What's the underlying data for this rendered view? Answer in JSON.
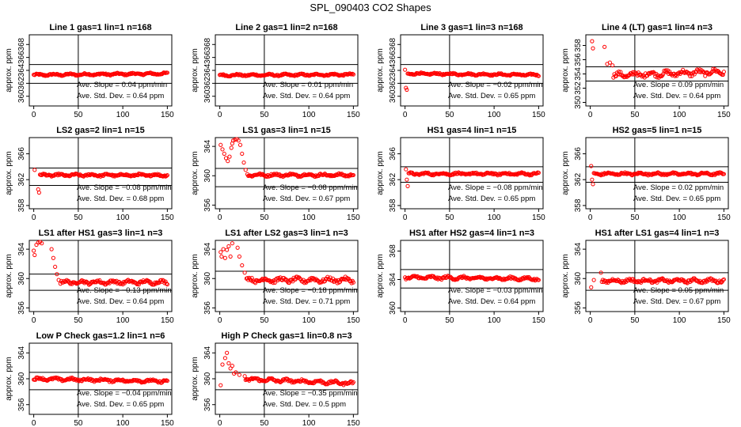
{
  "title": "SPL_090403  CO2 Shapes",
  "colors": {
    "points": "#ff0000",
    "axes": "#000000"
  },
  "chart_data": [
    {
      "type": "scatter",
      "title": "Line 1 gas=1 lin=1 n=168",
      "ylabel": "approx. ppm",
      "ylim": [
        358.5,
        369.5
      ],
      "yticks": [
        360,
        362,
        364,
        366,
        368
      ],
      "xlim": [
        -5,
        155
      ],
      "xticks": [
        0,
        50,
        100,
        150
      ],
      "vline": 50,
      "hlines": [
        364.9,
        362.0
      ],
      "slope_label": "Ave. Slope =  0.04  ppm/min",
      "sd_label": "Ave. Std. Dev. =  0.64  ppm",
      "profile": {
        "n": 168,
        "base": 363.4,
        "noise": 0.2,
        "trend": 0.1
      }
    },
    {
      "type": "scatter",
      "title": "Line 2 gas=1 lin=2 n=168",
      "ylabel": "approx. ppm",
      "ylim": [
        358.5,
        369.5
      ],
      "yticks": [
        360,
        362,
        364,
        366,
        368
      ],
      "xlim": [
        -5,
        155
      ],
      "xticks": [
        0,
        50,
        100,
        150
      ],
      "vline": 50,
      "hlines": [
        364.9,
        362.0
      ],
      "slope_label": "Ave. Slope =  0.01  ppm/min",
      "sd_label": "Ave. Std. Dev. =  0.64  ppm",
      "profile": {
        "n": 168,
        "base": 363.3,
        "noise": 0.2,
        "trend": 0.05
      }
    },
    {
      "type": "scatter",
      "title": "Line 3 gas=1 lin=3 n=168",
      "ylabel": "approx. ppm",
      "ylim": [
        358.5,
        369.5
      ],
      "yticks": [
        360,
        362,
        364,
        366,
        368
      ],
      "xlim": [
        -5,
        155
      ],
      "xticks": [
        0,
        50,
        100,
        150
      ],
      "vline": 50,
      "hlines": [
        364.9,
        362.0
      ],
      "slope_label": "Ave. Slope = −0.02  ppm/min",
      "sd_label": "Ave. Std. Dev. =  0.65  ppm",
      "profile": {
        "n": 168,
        "base": 363.4,
        "noise": 0.2,
        "trend": -0.1,
        "start": [
          [
            0,
            364.1
          ],
          [
            1,
            361.3
          ],
          [
            2,
            361.0
          ]
        ]
      }
    },
    {
      "type": "scatter",
      "title": "Line 4 (LT) gas=1 lin=4 n=3",
      "ylabel": "approx. ppm",
      "ylim": [
        349.5,
        359.5
      ],
      "yticks": [
        350,
        352,
        354,
        356,
        358
      ],
      "xlim": [
        -5,
        155
      ],
      "xticks": [
        0,
        50,
        100,
        150
      ],
      "vline": 50,
      "hlines": [
        355.0,
        353.0
      ],
      "slope_label": "Ave. Slope =  0.09  ppm/min",
      "sd_label": "Ave. Std. Dev. =  0.64  ppm",
      "profile": {
        "n": 150,
        "base": 354.0,
        "noise": 0.55,
        "trend": 0.3,
        "start": [
          [
            2,
            358.6
          ],
          [
            3,
            357.6
          ],
          [
            16,
            357.8
          ],
          [
            19,
            355.4
          ],
          [
            22,
            355.6
          ],
          [
            25,
            355.2
          ]
        ]
      }
    },
    {
      "type": "scatter",
      "title": "LS2 gas=2 lin=1 n=15",
      "ylabel": "approx. ppm",
      "ylim": [
        357.5,
        368.5
      ],
      "yticks": [
        358,
        362,
        366
      ],
      "xlim": [
        -5,
        155
      ],
      "xticks": [
        0,
        50,
        100,
        150
      ],
      "vline": 50,
      "hlines": [
        363.8,
        361.1
      ],
      "slope_label": "Ave. Slope = −0.08  ppm/min",
      "sd_label": "Ave. Std. Dev. =  0.68  ppm",
      "profile": {
        "n": 150,
        "base": 362.7,
        "noise": 0.25,
        "trend": 0.0,
        "start": [
          [
            1,
            363.5
          ],
          [
            5,
            360.5
          ],
          [
            6,
            360.0
          ]
        ]
      }
    },
    {
      "type": "scatter",
      "title": "LS1 gas=3 lin=1 n=15",
      "ylabel": "approx. ppm",
      "ylim": [
        355.5,
        365.2
      ],
      "yticks": [
        356,
        360,
        364
      ],
      "xlim": [
        -5,
        155
      ],
      "xticks": [
        0,
        50,
        100,
        150
      ],
      "vline": 50,
      "hlines": [
        361.0,
        358.5
      ],
      "slope_label": "Ave. Slope = −0.08  ppm/min",
      "sd_label": "Ave. Std. Dev. =  0.67  ppm",
      "profile": {
        "n": 150,
        "base": 360.1,
        "noise": 0.25,
        "trend": 0.0,
        "start": [
          [
            1,
            364.2
          ],
          [
            3,
            363.6
          ],
          [
            5,
            363.0
          ],
          [
            7,
            362.4
          ],
          [
            9,
            362.0
          ],
          [
            11,
            362.6
          ],
          [
            13,
            363.8
          ],
          [
            14,
            364.4
          ],
          [
            15,
            364.8
          ],
          [
            17,
            364.9
          ],
          [
            19,
            365.0
          ],
          [
            21,
            364.8
          ],
          [
            23,
            364.2
          ],
          [
            25,
            363.0
          ],
          [
            27,
            361.8
          ],
          [
            29,
            360.8
          ],
          [
            31,
            360.2
          ]
        ]
      }
    },
    {
      "type": "scatter",
      "title": "HS1 gas=4 lin=1 n=15",
      "ylabel": "approx. ppm",
      "ylim": [
        357.5,
        368.5
      ],
      "yticks": [
        358,
        362,
        366
      ],
      "xlim": [
        -5,
        155
      ],
      "xticks": [
        0,
        50,
        100,
        150
      ],
      "vline": 50,
      "hlines": [
        364.0,
        361.6
      ],
      "slope_label": "Ave. Slope = −0.08  ppm/min",
      "sd_label": "Ave. Std. Dev. =  0.65  ppm",
      "profile": {
        "n": 150,
        "base": 362.9,
        "noise": 0.25,
        "trend": 0.0,
        "start": [
          [
            1,
            363.6
          ],
          [
            2,
            362.0
          ],
          [
            3,
            361.0
          ]
        ]
      }
    },
    {
      "type": "scatter",
      "title": "HS2 gas=5 lin=1 n=15",
      "ylabel": "approx. ppm",
      "ylim": [
        357.5,
        368.5
      ],
      "yticks": [
        358,
        362,
        366
      ],
      "xlim": [
        -5,
        155
      ],
      "xticks": [
        0,
        50,
        100,
        150
      ],
      "vline": 50,
      "hlines": [
        364.0,
        361.6
      ],
      "slope_label": "Ave. Slope =  0.02  ppm/min",
      "sd_label": "Ave. Std. Dev. =  0.65  ppm",
      "profile": {
        "n": 150,
        "base": 362.9,
        "noise": 0.25,
        "trend": 0.0,
        "start": [
          [
            1,
            364.1
          ],
          [
            2,
            362.0
          ],
          [
            3,
            361.3
          ]
        ]
      }
    },
    {
      "type": "scatter",
      "title": "LS1 after HS1 gas=3 lin=1 n=3",
      "ylabel": "approx. ppm",
      "ylim": [
        355.5,
        365.2
      ],
      "yticks": [
        356,
        360,
        364
      ],
      "xlim": [
        -5,
        155
      ],
      "xticks": [
        0,
        50,
        100,
        150
      ],
      "vline": 50,
      "hlines": [
        360.6,
        358.4
      ],
      "slope_label": "Ave. Slope = −0.13  ppm/min",
      "sd_label": "Ave. Std. Dev. =  0.64  ppm",
      "profile": {
        "n": 150,
        "base": 359.5,
        "noise": 0.35,
        "trend": 0.0,
        "start": [
          [
            0,
            363.8
          ],
          [
            1,
            363.2
          ],
          [
            3,
            364.6
          ],
          [
            5,
            364.9
          ],
          [
            7,
            365.0
          ],
          [
            9,
            364.8
          ],
          [
            20,
            364.0
          ],
          [
            22,
            362.8
          ],
          [
            24,
            361.6
          ],
          [
            26,
            360.6
          ],
          [
            28,
            359.8
          ],
          [
            30,
            359.3
          ]
        ]
      }
    },
    {
      "type": "scatter",
      "title": "LS1 after LS2 gas=3 lin=1 n=3",
      "ylabel": "approx. ppm",
      "ylim": [
        355.5,
        365.2
      ],
      "yticks": [
        356,
        360,
        364
      ],
      "xlim": [
        -5,
        155
      ],
      "xticks": [
        0,
        50,
        100,
        150
      ],
      "vline": 50,
      "hlines": [
        361.0,
        358.5
      ],
      "slope_label": "Ave. Slope = −0.18  ppm/min",
      "sd_label": "Ave. Std. Dev. =  0.71  ppm",
      "profile": {
        "n": 150,
        "base": 359.8,
        "noise": 0.45,
        "trend": 0.0,
        "start": [
          [
            1,
            363.6
          ],
          [
            2,
            363.0
          ],
          [
            4,
            364.0
          ],
          [
            6,
            362.8
          ],
          [
            8,
            363.9
          ],
          [
            10,
            364.4
          ],
          [
            12,
            363.0
          ],
          [
            14,
            364.8
          ],
          [
            20,
            364.2
          ],
          [
            22,
            363.0
          ],
          [
            25,
            361.8
          ],
          [
            28,
            360.8
          ],
          [
            30,
            360.0
          ]
        ]
      }
    },
    {
      "type": "scatter",
      "title": "HS1 after HS2 gas=4 lin=1 n=3",
      "ylabel": "approx. ppm",
      "ylim": [
        359.5,
        369.5
      ],
      "yticks": [
        360,
        364,
        368
      ],
      "xlim": [
        -5,
        155
      ],
      "xticks": [
        0,
        50,
        100,
        150
      ],
      "vline": 50,
      "hlines": [
        365.4,
        362.8
      ],
      "slope_label": "Ave. Slope = −0.03  ppm/min",
      "sd_label": "Ave. Std. Dev. =  0.64  ppm",
      "profile": {
        "n": 150,
        "base": 364.2,
        "noise": 0.3,
        "trend": -0.1
      }
    },
    {
      "type": "scatter",
      "title": "HS1 after LS1 gas=4 lin=1 n=3",
      "ylabel": "approx. ppm",
      "ylim": [
        355.5,
        365.2
      ],
      "yticks": [
        356,
        360,
        364
      ],
      "xlim": [
        -5,
        155
      ],
      "xticks": [
        0,
        50,
        100,
        150
      ],
      "vline": 50,
      "hlines": [
        360.8,
        358.4
      ],
      "slope_label": "Ave. Slope =  0.05  ppm/min",
      "sd_label": "Ave. Std. Dev. =  0.67  ppm",
      "profile": {
        "n": 150,
        "base": 359.7,
        "noise": 0.35,
        "trend": 0.0,
        "start": [
          [
            1,
            358.8
          ],
          [
            4,
            359.8
          ],
          [
            12,
            360.8
          ]
        ]
      }
    },
    {
      "type": "scatter",
      "title": "Low P Check gas=1.2 lin=1 n=6",
      "ylabel": "approx. ppm",
      "ylim": [
        354.5,
        365.5
      ],
      "yticks": [
        356,
        360,
        364
      ],
      "xlim": [
        -5,
        155
      ],
      "xticks": [
        0,
        50,
        100,
        150
      ],
      "vline": 50,
      "hlines": [
        361.0,
        358.3
      ],
      "slope_label": "Ave. Slope = −0.04  ppm/min",
      "sd_label": "Ave. Std. Dev. =  0.65  ppm",
      "profile": {
        "n": 150,
        "base": 359.8,
        "noise": 0.3,
        "trend": -0.2
      }
    },
    {
      "type": "scatter",
      "title": "High P Check gas=1 lin=0.8 n=3",
      "ylabel": "approx. ppm",
      "ylim": [
        354.5,
        365.5
      ],
      "yticks": [
        356,
        360,
        364
      ],
      "xlim": [
        -5,
        155
      ],
      "xticks": [
        0,
        50,
        100,
        150
      ],
      "vline": 50,
      "hlines": [
        361.0,
        358.3
      ],
      "slope_label": "Ave. Slope = −0.35  ppm/min",
      "sd_label": "Ave. Std. Dev. =  0.5  ppm",
      "profile": {
        "n": 150,
        "base": 359.7,
        "noise": 0.35,
        "trend": -0.4,
        "start": [
          [
            1,
            359.0
          ],
          [
            3,
            362.2
          ],
          [
            6,
            363.2
          ],
          [
            8,
            364.0
          ],
          [
            10,
            362.4
          ],
          [
            12,
            361.6
          ],
          [
            14,
            362.0
          ],
          [
            16,
            360.8
          ],
          [
            18,
            361.0
          ],
          [
            22,
            360.6
          ],
          [
            28,
            360.4
          ]
        ]
      }
    }
  ]
}
